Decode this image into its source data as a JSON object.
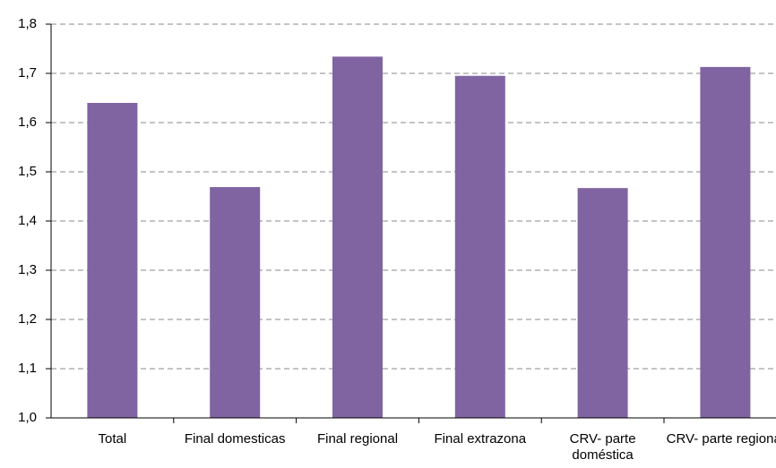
{
  "chart_data": {
    "type": "bar",
    "categories": [
      "Total",
      "Final domesticas",
      "Final regional",
      "Final extrazona",
      "CRV- parte doméstica",
      "CRV- parte regional"
    ],
    "values": [
      1.64,
      1.469,
      1.734,
      1.695,
      1.467,
      1.713
    ],
    "color": "#8064a2",
    "ylim": [
      1.0,
      1.8
    ],
    "yticks": [
      {
        "value": 1.0,
        "label": "1,0"
      },
      {
        "value": 1.1,
        "label": "1,1"
      },
      {
        "value": 1.2,
        "label": "1,2"
      },
      {
        "value": 1.3,
        "label": "1,3"
      },
      {
        "value": 1.4,
        "label": "1,4"
      },
      {
        "value": 1.5,
        "label": "1,5"
      },
      {
        "value": 1.6,
        "label": "1,6"
      },
      {
        "value": 1.7,
        "label": "1,7"
      },
      {
        "value": 1.8,
        "label": "1,8"
      }
    ],
    "grid": true
  }
}
